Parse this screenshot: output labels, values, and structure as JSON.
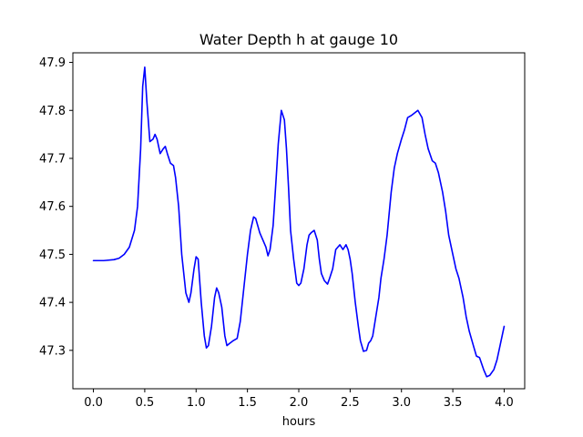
{
  "chart_data": {
    "type": "line",
    "title": "Water Depth h at gauge 10",
    "xlabel": "hours",
    "ylabel": "",
    "xlim": [
      -0.2,
      4.2
    ],
    "ylim": [
      47.22,
      47.92
    ],
    "xticks": [
      0.0,
      0.5,
      1.0,
      1.5,
      2.0,
      2.5,
      3.0,
      3.5,
      4.0
    ],
    "xtick_labels": [
      "0.0",
      "0.5",
      "1.0",
      "1.5",
      "2.0",
      "2.5",
      "3.0",
      "3.5",
      "4.0"
    ],
    "yticks": [
      47.3,
      47.4,
      47.5,
      47.6,
      47.7,
      47.8,
      47.9
    ],
    "ytick_labels": [
      "47.3",
      "47.4",
      "47.5",
      "47.6",
      "47.7",
      "47.8",
      "47.9"
    ],
    "grid": false,
    "series": [
      {
        "name": "",
        "color": "#0000ff",
        "x": [
          0.0,
          0.1,
          0.2,
          0.25,
          0.3,
          0.35,
          0.4,
          0.43,
          0.46,
          0.48,
          0.5,
          0.52,
          0.55,
          0.58,
          0.6,
          0.62,
          0.65,
          0.68,
          0.7,
          0.72,
          0.75,
          0.78,
          0.8,
          0.83,
          0.86,
          0.9,
          0.93,
          0.95,
          0.98,
          1.0,
          1.02,
          1.05,
          1.08,
          1.1,
          1.12,
          1.15,
          1.18,
          1.2,
          1.22,
          1.25,
          1.28,
          1.3,
          1.33,
          1.36,
          1.4,
          1.43,
          1.46,
          1.5,
          1.53,
          1.56,
          1.58,
          1.6,
          1.62,
          1.65,
          1.68,
          1.7,
          1.72,
          1.75,
          1.78,
          1.8,
          1.83,
          1.86,
          1.88,
          1.9,
          1.92,
          1.95,
          1.98,
          2.0,
          2.02,
          2.05,
          2.08,
          2.1,
          2.12,
          2.15,
          2.18,
          2.2,
          2.22,
          2.25,
          2.28,
          2.3,
          2.33,
          2.36,
          2.4,
          2.43,
          2.46,
          2.48,
          2.5,
          2.52,
          2.55,
          2.58,
          2.6,
          2.63,
          2.66,
          2.68,
          2.7,
          2.72,
          2.75,
          2.78,
          2.8,
          2.83,
          2.86,
          2.9,
          2.93,
          2.96,
          3.0,
          3.03,
          3.06,
          3.1,
          3.13,
          3.16,
          3.2,
          3.23,
          3.26,
          3.3,
          3.33,
          3.36,
          3.4,
          3.43,
          3.46,
          3.5,
          3.53,
          3.56,
          3.6,
          3.63,
          3.66,
          3.7,
          3.73,
          3.76,
          3.8,
          3.83,
          3.86,
          3.9,
          3.93,
          3.96,
          4.0
        ],
        "y": [
          47.487,
          47.487,
          47.489,
          47.492,
          47.5,
          47.515,
          47.55,
          47.6,
          47.72,
          47.85,
          47.89,
          47.82,
          47.735,
          47.74,
          47.75,
          47.74,
          47.71,
          47.72,
          47.725,
          47.71,
          47.69,
          47.685,
          47.66,
          47.6,
          47.5,
          47.42,
          47.4,
          47.42,
          47.47,
          47.495,
          47.49,
          47.4,
          47.33,
          47.305,
          47.31,
          47.35,
          47.41,
          47.43,
          47.42,
          47.39,
          47.33,
          47.31,
          47.315,
          47.32,
          47.325,
          47.36,
          47.42,
          47.5,
          47.55,
          47.578,
          47.575,
          47.56,
          47.545,
          47.53,
          47.515,
          47.497,
          47.51,
          47.56,
          47.66,
          47.73,
          47.8,
          47.78,
          47.72,
          47.64,
          47.55,
          47.49,
          47.44,
          47.435,
          47.44,
          47.47,
          47.52,
          47.54,
          47.545,
          47.55,
          47.53,
          47.49,
          47.46,
          47.445,
          47.438,
          47.45,
          47.47,
          47.51,
          47.52,
          47.51,
          47.52,
          47.51,
          47.49,
          47.46,
          47.4,
          47.35,
          47.32,
          47.298,
          47.3,
          47.315,
          47.32,
          47.33,
          47.37,
          47.41,
          47.45,
          47.49,
          47.54,
          47.63,
          47.68,
          47.71,
          47.74,
          47.76,
          47.785,
          47.79,
          47.795,
          47.8,
          47.785,
          47.75,
          47.72,
          47.695,
          47.69,
          47.67,
          47.63,
          47.59,
          47.54,
          47.5,
          47.47,
          47.45,
          47.41,
          47.37,
          47.34,
          47.31,
          47.288,
          47.285,
          47.26,
          47.245,
          47.248,
          47.26,
          47.28,
          47.31,
          47.35
        ]
      }
    ]
  }
}
